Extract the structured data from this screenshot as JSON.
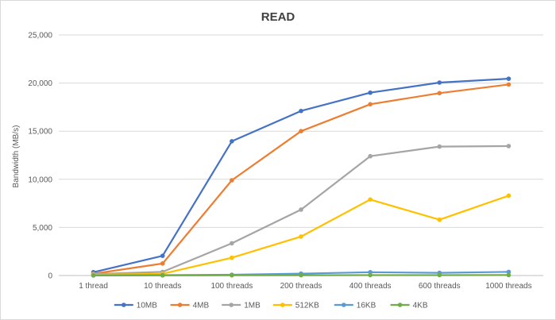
{
  "chart_data": {
    "type": "line",
    "title": "READ",
    "xlabel": "",
    "ylabel": "Bandwidth (MB/s)",
    "ylim": [
      0,
      25000
    ],
    "yticks": [
      0,
      5000,
      10000,
      15000,
      20000,
      25000
    ],
    "ytick_labels": [
      "0",
      "5,000",
      "10,000",
      "15,000",
      "20,000",
      "25,000"
    ],
    "grid": true,
    "legend_position": "bottom",
    "categories": [
      "1 thread",
      "10 threads",
      "100 threads",
      "200 threads",
      "400 threads",
      "600 threads",
      "1000 threads"
    ],
    "series": [
      {
        "name": "10MB",
        "color": "#4472C4",
        "values": [
          350,
          2050,
          13950,
          17100,
          19000,
          20050,
          20450
        ]
      },
      {
        "name": "4MB",
        "color": "#ED7D31",
        "values": [
          180,
          1250,
          9900,
          15000,
          17800,
          18950,
          19850
        ]
      },
      {
        "name": "1MB",
        "color": "#A5A5A5",
        "values": [
          150,
          380,
          3350,
          6850,
          12400,
          13400,
          13450
        ]
      },
      {
        "name": "512KB",
        "color": "#FFC000",
        "values": [
          80,
          180,
          1850,
          4050,
          7900,
          5800,
          8300
        ]
      },
      {
        "name": "16KB",
        "color": "#5B9BD5",
        "values": [
          20,
          40,
          80,
          200,
          350,
          280,
          380
        ]
      },
      {
        "name": "4KB",
        "color": "#70AD47",
        "values": [
          10,
          15,
          25,
          35,
          45,
          45,
          50
        ]
      }
    ]
  }
}
